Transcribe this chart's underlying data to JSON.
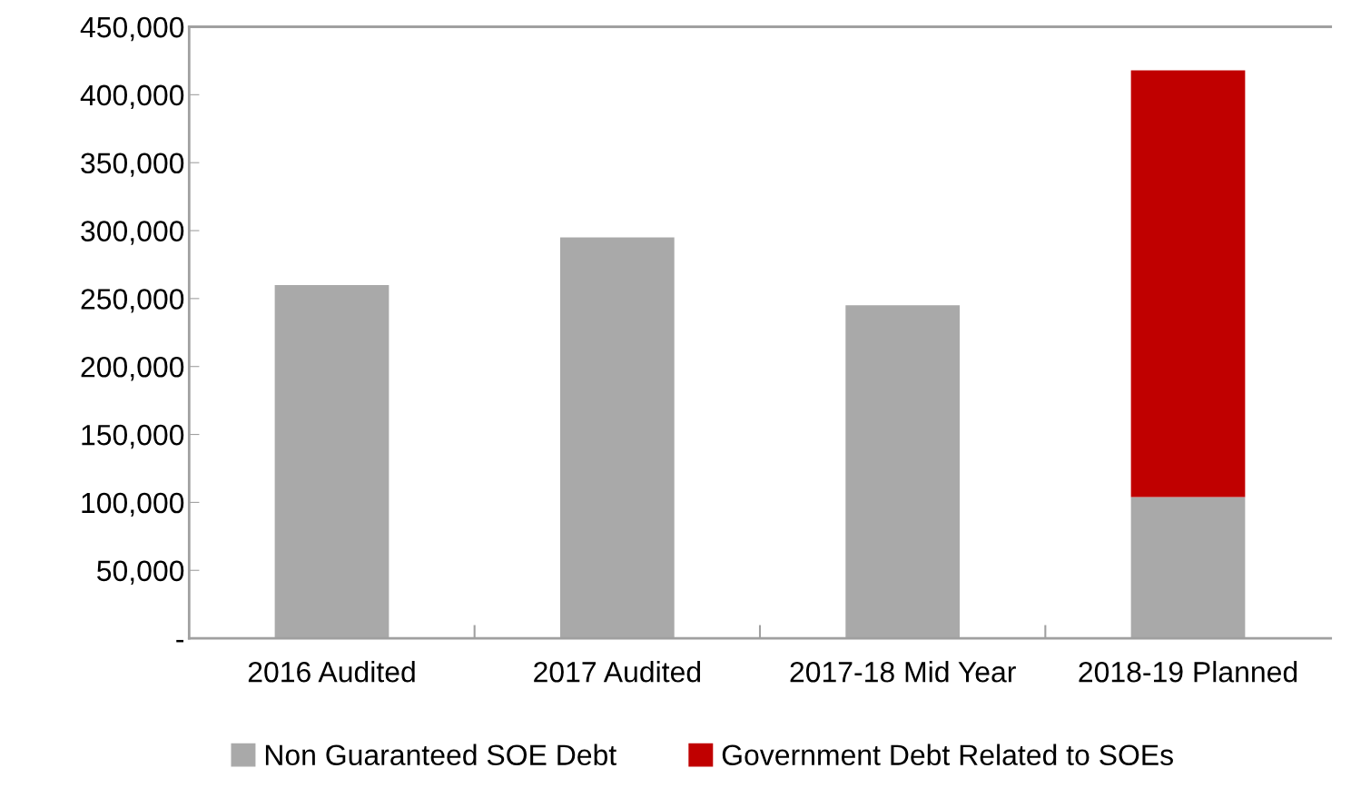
{
  "chart_data": {
    "type": "bar",
    "stacked": true,
    "categories": [
      "2016 Audited",
      "2017 Audited",
      "2017-18 Mid Year",
      "2018-19 Planned"
    ],
    "series": [
      {
        "name": "Non Guaranteed SOE Debt",
        "color": "#a9a9a9",
        "values": [
          260000,
          295000,
          245000,
          104000
        ]
      },
      {
        "name": "Government Debt Related to SOEs",
        "color": "#c00000",
        "values": [
          null,
          null,
          null,
          314000
        ]
      }
    ],
    "ylim": [
      0,
      450000
    ],
    "yticks": [
      {
        "value": 0,
        "label": "-"
      },
      {
        "value": 50000,
        "label": "50,000"
      },
      {
        "value": 100000,
        "label": "100,000"
      },
      {
        "value": 150000,
        "label": "150,000"
      },
      {
        "value": 200000,
        "label": "200,000"
      },
      {
        "value": 250000,
        "label": "250,000"
      },
      {
        "value": 300000,
        "label": "300,000"
      },
      {
        "value": 350000,
        "label": "350,000"
      },
      {
        "value": 400000,
        "label": "400,000"
      },
      {
        "value": 450000,
        "label": "450,000"
      }
    ],
    "grid": false,
    "legend": "bottom"
  }
}
